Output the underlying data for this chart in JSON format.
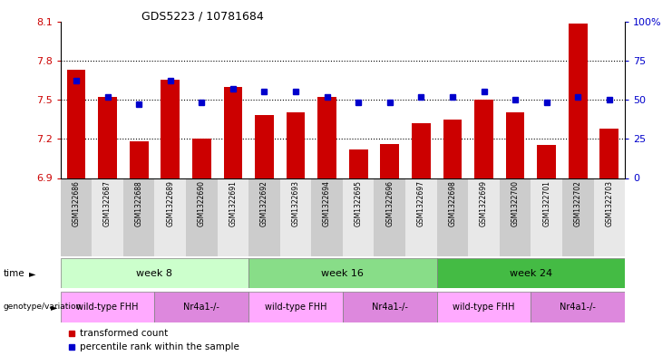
{
  "title": "GDS5223 / 10781684",
  "samples": [
    "GSM1322686",
    "GSM1322687",
    "GSM1322688",
    "GSM1322689",
    "GSM1322690",
    "GSM1322691",
    "GSM1322692",
    "GSM1322693",
    "GSM1322694",
    "GSM1322695",
    "GSM1322696",
    "GSM1322697",
    "GSM1322698",
    "GSM1322699",
    "GSM1322700",
    "GSM1322701",
    "GSM1322702",
    "GSM1322703"
  ],
  "transformed_count": [
    7.73,
    7.52,
    7.18,
    7.65,
    7.2,
    7.6,
    7.38,
    7.4,
    7.52,
    7.12,
    7.16,
    7.32,
    7.35,
    7.5,
    7.4,
    7.15,
    8.08,
    7.28
  ],
  "percentile_rank": [
    62,
    52,
    47,
    62,
    48,
    57,
    55,
    55,
    52,
    48,
    48,
    52,
    52,
    55,
    50,
    48,
    52,
    50
  ],
  "ylim_left": [
    6.9,
    8.1
  ],
  "ylim_right": [
    0,
    100
  ],
  "yticks_left": [
    6.9,
    7.2,
    7.5,
    7.8,
    8.1
  ],
  "yticks_right": [
    0,
    25,
    50,
    75,
    100
  ],
  "ytick_labels_left": [
    "6.9",
    "7.2",
    "7.5",
    "7.8",
    "8.1"
  ],
  "ytick_labels_right": [
    "0",
    "25",
    "50",
    "75",
    "100%"
  ],
  "bar_color": "#cc0000",
  "point_color": "#0000cc",
  "bar_width": 0.6,
  "time_groups": [
    {
      "label": "week 8",
      "start": 0,
      "end": 6,
      "color": "#ccffcc"
    },
    {
      "label": "week 16",
      "start": 6,
      "end": 12,
      "color": "#88dd88"
    },
    {
      "label": "week 24",
      "start": 12,
      "end": 18,
      "color": "#44bb44"
    }
  ],
  "genotype_groups": [
    {
      "label": "wild-type FHH",
      "start": 0,
      "end": 3,
      "color": "#ffaaff"
    },
    {
      "label": "Nr4a1-/-",
      "start": 3,
      "end": 6,
      "color": "#dd88dd"
    },
    {
      "label": "wild-type FHH",
      "start": 6,
      "end": 9,
      "color": "#ffaaff"
    },
    {
      "label": "Nr4a1-/-",
      "start": 9,
      "end": 12,
      "color": "#dd88dd"
    },
    {
      "label": "wild-type FHH",
      "start": 12,
      "end": 15,
      "color": "#ffaaff"
    },
    {
      "label": "Nr4a1-/-",
      "start": 15,
      "end": 18,
      "color": "#dd88dd"
    }
  ],
  "legend_items": [
    {
      "label": "transformed count",
      "color": "#cc0000"
    },
    {
      "label": "percentile rank within the sample",
      "color": "#0000cc"
    }
  ],
  "dotted_yticks": [
    7.2,
    7.5,
    7.8
  ],
  "sample_bg_even": "#cccccc",
  "sample_bg_odd": "#e8e8e8",
  "background_color": "#ffffff"
}
